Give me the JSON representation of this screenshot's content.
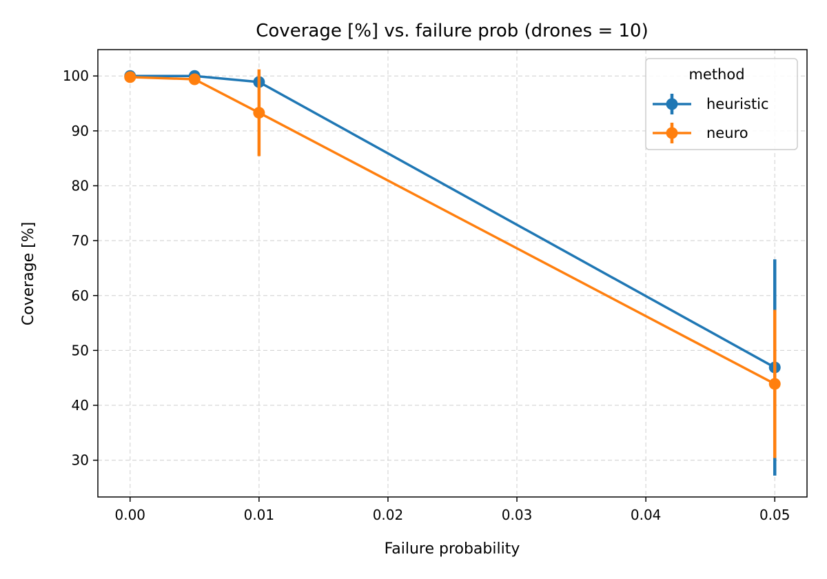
{
  "chart_data": {
    "type": "line",
    "title": "Coverage [%] vs. failure prob (drones = 10)",
    "xlabel": "Failure probability",
    "ylabel": "Coverage [%]",
    "xlim": [
      -0.0025,
      0.0525
    ],
    "ylim": [
      23.3,
      104.8
    ],
    "xticks": [
      0.0,
      0.01,
      0.02,
      0.03,
      0.04,
      0.05
    ],
    "xtick_labels": [
      "0.00",
      "0.01",
      "0.02",
      "0.03",
      "0.04",
      "0.05"
    ],
    "yticks": [
      30,
      40,
      50,
      60,
      70,
      80,
      90,
      100
    ],
    "ytick_labels": [
      "30",
      "40",
      "50",
      "60",
      "70",
      "80",
      "90",
      "100"
    ],
    "grid": true,
    "legend": {
      "title": "method",
      "position": "top-right"
    },
    "series": [
      {
        "name": "heuristic",
        "color": "#1f77b4",
        "points": [
          {
            "x": 0.0,
            "y": 100.0,
            "err": 0.0
          },
          {
            "x": 0.005,
            "y": 100.0,
            "err": 0.0
          },
          {
            "x": 0.01,
            "y": 98.9,
            "err": 0.0
          },
          {
            "x": 0.05,
            "y": 46.9,
            "err": 19.7
          }
        ]
      },
      {
        "name": "neuro",
        "color": "#ff7f0e",
        "points": [
          {
            "x": 0.0,
            "y": 99.8,
            "err": 0.0
          },
          {
            "x": 0.005,
            "y": 99.4,
            "err": 0.0
          },
          {
            "x": 0.01,
            "y": 93.3,
            "err": 7.9
          },
          {
            "x": 0.05,
            "y": 43.9,
            "err": 13.5
          }
        ]
      }
    ]
  }
}
